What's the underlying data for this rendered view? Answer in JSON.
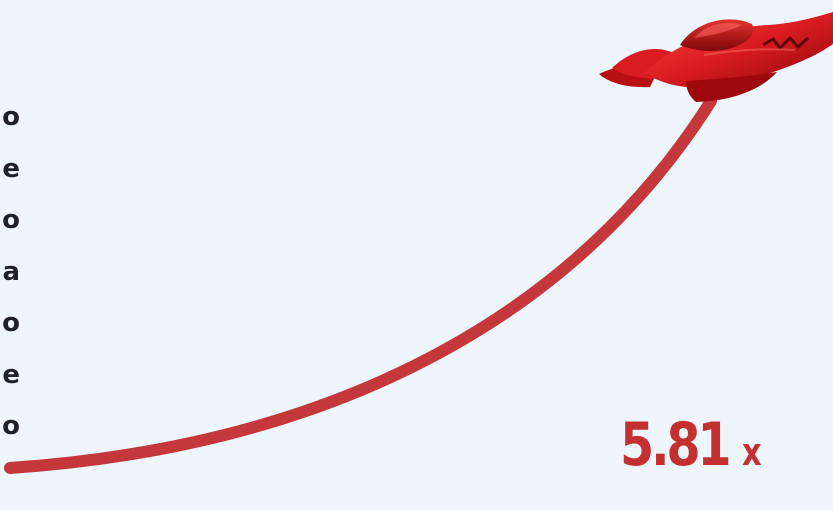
{
  "game": {
    "multiplier": {
      "value": "5.81",
      "unit": "x"
    },
    "side_letters": [
      "o",
      "e",
      "o",
      "a",
      "o",
      "e",
      "o"
    ],
    "colors": {
      "background": "#eef5fd",
      "trail": "#c4373a",
      "plane": "#d71920",
      "multiplier": "#c4302f",
      "side_text": "#202126"
    },
    "icons": {
      "plane": "red-propeller-plane-icon"
    }
  }
}
